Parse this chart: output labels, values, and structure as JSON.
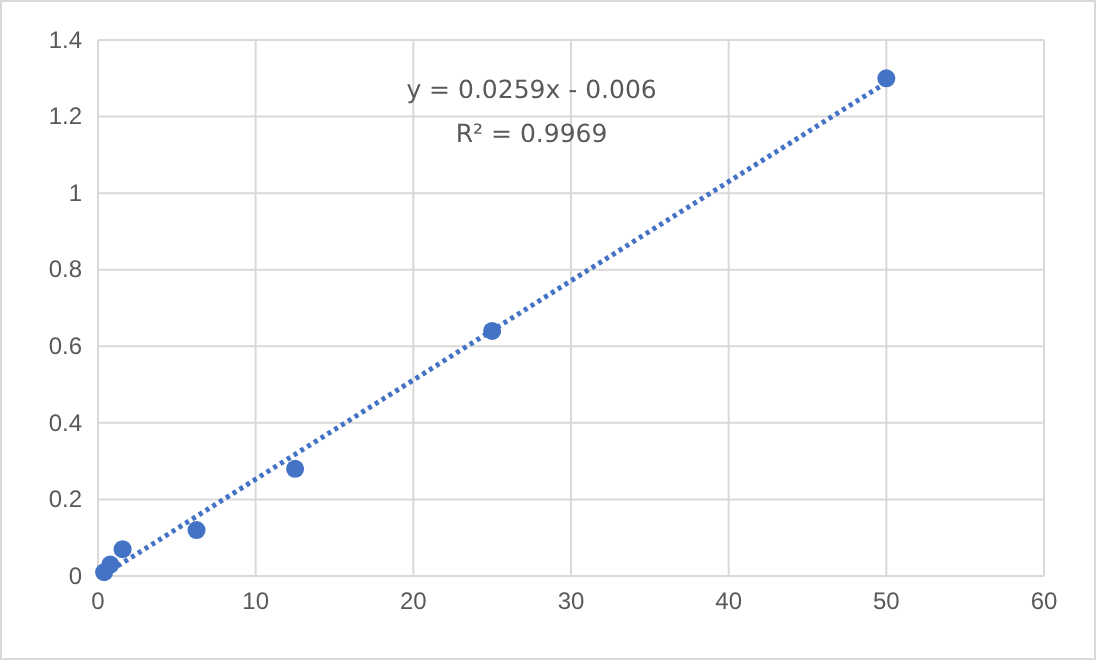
{
  "chart_data": {
    "type": "scatter",
    "xlim": [
      0,
      60
    ],
    "xticks": [
      0,
      10,
      20,
      30,
      40,
      50,
      60
    ],
    "ylim": [
      0,
      1.4
    ],
    "yticks": [
      0,
      0.2,
      0.4,
      0.6,
      0.8,
      1,
      1.2,
      1.4
    ],
    "grid": true,
    "marker": "circle",
    "annotations": [
      "y = 0.0259x - 0.006",
      "R² = 0.9969"
    ],
    "series": [
      {
        "color": "#4472c4",
        "x": [
          0.39,
          0.78,
          1.56,
          6.25,
          12.5,
          25,
          50
        ],
        "values": [
          0.01,
          0.03,
          0.07,
          0.12,
          0.28,
          0.64,
          1.3
        ]
      },
      {
        "type": "line",
        "color": "#4472c4",
        "line_style": "dotted",
        "marker": "none",
        "x": [
          0.39,
          50
        ],
        "values": [
          0.004,
          1.289
        ]
      }
    ]
  }
}
